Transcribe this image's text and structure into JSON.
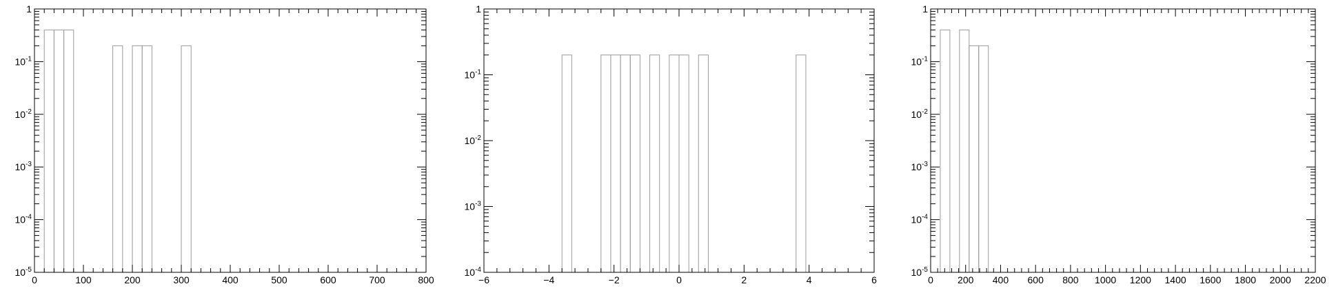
{
  "chart_data": [
    {
      "type": "bar",
      "title": "",
      "xlabel": "",
      "ylabel": "",
      "y_scale": "log",
      "xlim": [
        0,
        800
      ],
      "ylim": [
        1e-05,
        1
      ],
      "xticks": [
        "0",
        "100",
        "200",
        "300",
        "400",
        "500",
        "600",
        "700",
        "800"
      ],
      "yticks": [
        {
          "base": "10",
          "exp": "-5"
        },
        {
          "base": "10",
          "exp": "-4"
        },
        {
          "base": "10",
          "exp": "-3"
        },
        {
          "base": "10",
          "exp": "-2"
        },
        {
          "base": "10",
          "exp": "-1"
        },
        {
          "base": "1",
          "exp": ""
        }
      ],
      "bins": [
        {
          "x0": 20,
          "x1": 40,
          "y": 0.4
        },
        {
          "x0": 40,
          "x1": 60,
          "y": 0.4
        },
        {
          "x0": 60,
          "x1": 80,
          "y": 0.4
        },
        {
          "x0": 160,
          "x1": 180,
          "y": 0.2
        },
        {
          "x0": 200,
          "x1": 220,
          "y": 0.2
        },
        {
          "x0": 220,
          "x1": 240,
          "y": 0.2
        },
        {
          "x0": 300,
          "x1": 320,
          "y": 0.2
        }
      ]
    },
    {
      "type": "bar",
      "title": "",
      "xlabel": "",
      "ylabel": "",
      "y_scale": "log",
      "xlim": [
        -6,
        6
      ],
      "ylim": [
        0.0001,
        1
      ],
      "xticks": [
        "−6",
        "−4",
        "−2",
        "0",
        "2",
        "4",
        "6"
      ],
      "yticks": [
        {
          "base": "10",
          "exp": "-4"
        },
        {
          "base": "10",
          "exp": "-3"
        },
        {
          "base": "10",
          "exp": "-2"
        },
        {
          "base": "10",
          "exp": "-1"
        },
        {
          "base": "1",
          "exp": ""
        }
      ],
      "bins": [
        {
          "x0": -3.6,
          "x1": -3.3,
          "y": 0.2
        },
        {
          "x0": -2.4,
          "x1": -2.1,
          "y": 0.2
        },
        {
          "x0": -2.1,
          "x1": -1.8,
          "y": 0.2
        },
        {
          "x0": -1.8,
          "x1": -1.5,
          "y": 0.2
        },
        {
          "x0": -1.5,
          "x1": -1.2,
          "y": 0.2
        },
        {
          "x0": -0.9,
          "x1": -0.6,
          "y": 0.2
        },
        {
          "x0": -0.3,
          "x1": 0.0,
          "y": 0.2
        },
        {
          "x0": 0.0,
          "x1": 0.3,
          "y": 0.2
        },
        {
          "x0": 0.6,
          "x1": 0.9,
          "y": 0.2
        },
        {
          "x0": 3.6,
          "x1": 3.9,
          "y": 0.2
        }
      ]
    },
    {
      "type": "bar",
      "title": "",
      "xlabel": "",
      "ylabel": "",
      "y_scale": "log",
      "xlim": [
        0,
        2200
      ],
      "ylim": [
        1e-05,
        1
      ],
      "xticks": [
        "0",
        "200",
        "400",
        "600",
        "800",
        "1000",
        "1200",
        "1400",
        "1600",
        "1800",
        "2000",
        "2200"
      ],
      "yticks": [
        {
          "base": "10",
          "exp": "-5"
        },
        {
          "base": "10",
          "exp": "-4"
        },
        {
          "base": "10",
          "exp": "-3"
        },
        {
          "base": "10",
          "exp": "-2"
        },
        {
          "base": "10",
          "exp": "-1"
        },
        {
          "base": "1",
          "exp": ""
        }
      ],
      "bins": [
        {
          "x0": 55,
          "x1": 110,
          "y": 0.4
        },
        {
          "x0": 165,
          "x1": 220,
          "y": 0.4
        },
        {
          "x0": 220,
          "x1": 275,
          "y": 0.2
        },
        {
          "x0": 275,
          "x1": 330,
          "y": 0.2
        }
      ]
    }
  ]
}
